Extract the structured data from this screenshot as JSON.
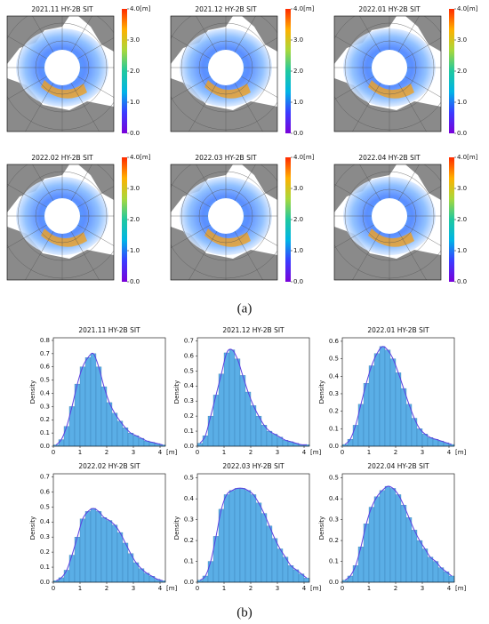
{
  "panel_labels": [
    "(a)",
    "(b)"
  ],
  "chart_data": [
    {
      "type": "map",
      "title": "2021.11 HY-2B SIT",
      "clim": [
        0,
        4
      ],
      "colormap": [
        "#7a00d9",
        "#3b3bff",
        "#00b4e6",
        "#20c8a0",
        "#a8d83c",
        "#ffb000",
        "#ff2a00"
      ],
      "cticks": [
        {
          "value": 0,
          "label": "0.0"
        },
        {
          "value": 1,
          "label": "1.0"
        },
        {
          "value": 2,
          "label": "2.0"
        },
        {
          "value": 3,
          "label": "3.0"
        },
        {
          "value": 4,
          "label": "4.0[m]"
        }
      ]
    },
    {
      "type": "map",
      "title": "2021.12 HY-2B SIT",
      "clim": [
        0,
        4
      ],
      "colormap": [
        "#7a00d9",
        "#3b3bff",
        "#00b4e6",
        "#20c8a0",
        "#a8d83c",
        "#ffb000",
        "#ff2a00"
      ],
      "cticks": [
        {
          "value": 0,
          "label": "0.0"
        },
        {
          "value": 1,
          "label": "1.0"
        },
        {
          "value": 2,
          "label": "2.0"
        },
        {
          "value": 3,
          "label": "3.0"
        },
        {
          "value": 4,
          "label": "4.0[m]"
        }
      ]
    },
    {
      "type": "map",
      "title": "2022.01  HY-2B SIT",
      "clim": [
        0,
        4
      ],
      "colormap": [
        "#7a00d9",
        "#3b3bff",
        "#00b4e6",
        "#20c8a0",
        "#a8d83c",
        "#ffb000",
        "#ff2a00"
      ],
      "cticks": [
        {
          "value": 0,
          "label": "0.0"
        },
        {
          "value": 1,
          "label": "1.0"
        },
        {
          "value": 2,
          "label": "2.0"
        },
        {
          "value": 3,
          "label": "3.0"
        },
        {
          "value": 4,
          "label": "4.0[m]"
        }
      ]
    },
    {
      "type": "map",
      "title": "2022.02 HY-2B SIT",
      "clim": [
        0,
        4
      ],
      "colormap": [
        "#7a00d9",
        "#3b3bff",
        "#00b4e6",
        "#20c8a0",
        "#a8d83c",
        "#ffb000",
        "#ff2a00"
      ],
      "cticks": [
        {
          "value": 0,
          "label": "0.0"
        },
        {
          "value": 1,
          "label": "1.0"
        },
        {
          "value": 2,
          "label": "2.0"
        },
        {
          "value": 3,
          "label": "3.0"
        },
        {
          "value": 4,
          "label": "4.0[m]"
        }
      ]
    },
    {
      "type": "map",
      "title": "2022.03 HY-2B SIT",
      "clim": [
        0,
        4
      ],
      "colormap": [
        "#7a00d9",
        "#3b3bff",
        "#00b4e6",
        "#20c8a0",
        "#a8d83c",
        "#ffb000",
        "#ff2a00"
      ],
      "cticks": [
        {
          "value": 0,
          "label": "0.0"
        },
        {
          "value": 1,
          "label": "1.0"
        },
        {
          "value": 2,
          "label": "2.0"
        },
        {
          "value": 3,
          "label": "3.0"
        },
        {
          "value": 4,
          "label": "4.0[m]"
        }
      ]
    },
    {
      "type": "map",
      "title": "2022.04 HY-2B SIT",
      "clim": [
        0,
        4
      ],
      "colormap": [
        "#7a00d9",
        "#3b3bff",
        "#00b4e6",
        "#20c8a0",
        "#a8d83c",
        "#ffb000",
        "#ff2a00"
      ],
      "cticks": [
        {
          "value": 0,
          "label": "0.0"
        },
        {
          "value": 1,
          "label": "1.0"
        },
        {
          "value": 2,
          "label": "2.0"
        },
        {
          "value": 3,
          "label": "3.0"
        },
        {
          "value": 4,
          "label": "4.0[m]"
        }
      ]
    },
    {
      "type": "histogram",
      "title": "2021.11 HY-2B SIT",
      "ylabel": "Density",
      "xlabel": "[m]",
      "color": "#5aaee6",
      "curve_color": "#5b3fe0",
      "bins": [
        0,
        0.2,
        0.4,
        0.6,
        0.8,
        1.0,
        1.2,
        1.4,
        1.6,
        1.8,
        2.0,
        2.2,
        2.4,
        2.6,
        2.8,
        3.0,
        3.2,
        3.4,
        3.6,
        3.8,
        4.0,
        4.2
      ],
      "values": [
        0.01,
        0.05,
        0.15,
        0.3,
        0.47,
        0.6,
        0.67,
        0.7,
        0.6,
        0.45,
        0.33,
        0.25,
        0.19,
        0.14,
        0.1,
        0.08,
        0.06,
        0.04,
        0.03,
        0.02,
        0.01
      ],
      "xlim": [
        0,
        4.2
      ],
      "xticks": [
        0,
        1,
        2,
        3,
        4
      ],
      "ylim": [
        0,
        0.82
      ],
      "yticks": [
        {
          "value": 0,
          "label": "0.0"
        },
        0.1,
        0.2,
        0.3,
        0.4,
        0.5,
        0.6,
        0.7,
        0.8
      ]
    },
    {
      "type": "histogram",
      "title": "2021.12 HY-2B SIT",
      "ylabel": "Density",
      "xlabel": "[m]",
      "color": "#5aaee6",
      "curve_color": "#5b3fe0",
      "bins": [
        0,
        0.2,
        0.4,
        0.6,
        0.8,
        1.0,
        1.2,
        1.4,
        1.6,
        1.8,
        2.0,
        2.2,
        2.4,
        2.6,
        2.8,
        3.0,
        3.2,
        3.4,
        3.6,
        3.8,
        4.0,
        4.2
      ],
      "values": [
        0.02,
        0.07,
        0.2,
        0.34,
        0.48,
        0.62,
        0.64,
        0.58,
        0.47,
        0.36,
        0.27,
        0.2,
        0.14,
        0.1,
        0.08,
        0.06,
        0.04,
        0.03,
        0.02,
        0.01,
        0.01
      ],
      "xlim": [
        0,
        4.2
      ],
      "xticks": [
        0,
        1,
        2,
        3,
        4
      ],
      "ylim": [
        0,
        0.72
      ],
      "yticks": [
        {
          "value": 0,
          "label": "0.0"
        },
        0.1,
        0.2,
        0.3,
        0.4,
        0.5,
        0.6,
        0.7
      ]
    },
    {
      "type": "histogram",
      "title": "2022.01  HY-2B SIT",
      "ylabel": "Density",
      "xlabel": "[m]",
      "color": "#5aaee6",
      "curve_color": "#5b3fe0",
      "bins": [
        0,
        0.2,
        0.4,
        0.6,
        0.8,
        1.0,
        1.2,
        1.4,
        1.6,
        1.8,
        2.0,
        2.2,
        2.4,
        2.6,
        2.8,
        3.0,
        3.2,
        3.4,
        3.6,
        3.8,
        4.0,
        4.2
      ],
      "values": [
        0.01,
        0.04,
        0.12,
        0.24,
        0.36,
        0.46,
        0.53,
        0.57,
        0.55,
        0.5,
        0.42,
        0.33,
        0.24,
        0.16,
        0.1,
        0.07,
        0.05,
        0.04,
        0.03,
        0.02,
        0.01
      ],
      "xlim": [
        0,
        4.2
      ],
      "xticks": [
        0,
        1,
        2,
        3,
        4
      ],
      "ylim": [
        0,
        0.62
      ],
      "yticks": [
        {
          "value": 0,
          "label": "0.0"
        },
        0.1,
        0.2,
        0.3,
        0.4,
        0.5,
        0.6
      ]
    },
    {
      "type": "histogram",
      "title": "2022.02 HY-2B SIT",
      "ylabel": "Density",
      "xlabel": "[m]",
      "color": "#5aaee6",
      "curve_color": "#5b3fe0",
      "bins": [
        0,
        0.2,
        0.4,
        0.6,
        0.8,
        1.0,
        1.2,
        1.4,
        1.6,
        1.8,
        2.0,
        2.2,
        2.4,
        2.6,
        2.8,
        3.0,
        3.2,
        3.4,
        3.6,
        3.8,
        4.0,
        4.2
      ],
      "values": [
        0.01,
        0.03,
        0.08,
        0.18,
        0.3,
        0.42,
        0.47,
        0.49,
        0.47,
        0.43,
        0.41,
        0.38,
        0.33,
        0.26,
        0.19,
        0.13,
        0.09,
        0.06,
        0.04,
        0.02,
        0.01
      ],
      "xlim": [
        0,
        4.2
      ],
      "xticks": [
        0,
        1,
        2,
        3,
        4
      ],
      "ylim": [
        0,
        0.72
      ],
      "yticks": [
        {
          "value": 0,
          "label": "0.0"
        },
        0.1,
        0.2,
        0.3,
        0.4,
        0.5,
        0.6,
        0.7
      ]
    },
    {
      "type": "histogram",
      "title": "2022.03 HY-2B SIT",
      "ylabel": "Density",
      "xlabel": "[m]",
      "color": "#5aaee6",
      "curve_color": "#5b3fe0",
      "bins": [
        0,
        0.2,
        0.4,
        0.6,
        0.8,
        1.0,
        1.2,
        1.4,
        1.6,
        1.8,
        2.0,
        2.2,
        2.4,
        2.6,
        2.8,
        3.0,
        3.2,
        3.4,
        3.6,
        3.8,
        4.0,
        4.2
      ],
      "values": [
        0.01,
        0.03,
        0.1,
        0.22,
        0.35,
        0.42,
        0.44,
        0.45,
        0.45,
        0.44,
        0.42,
        0.38,
        0.33,
        0.27,
        0.21,
        0.16,
        0.12,
        0.08,
        0.06,
        0.04,
        0.02
      ],
      "xlim": [
        0,
        4.2
      ],
      "xticks": [
        0,
        1,
        2,
        3,
        4
      ],
      "ylim": [
        0,
        0.52
      ],
      "yticks": [
        {
          "value": 0,
          "label": "0.0"
        },
        0.1,
        0.2,
        0.3,
        0.4,
        0.5
      ]
    },
    {
      "type": "histogram",
      "title": "2022.04 HY-2B SIT",
      "ylabel": "Density",
      "xlabel": "[m]",
      "color": "#5aaee6",
      "curve_color": "#5b3fe0",
      "bins": [
        0,
        0.2,
        0.4,
        0.6,
        0.8,
        1.0,
        1.2,
        1.4,
        1.6,
        1.8,
        2.0,
        2.2,
        2.4,
        2.6,
        2.8,
        3.0,
        3.2,
        3.4,
        3.6,
        3.8,
        4.0,
        4.2
      ],
      "values": [
        0.01,
        0.03,
        0.08,
        0.17,
        0.28,
        0.36,
        0.41,
        0.44,
        0.46,
        0.45,
        0.42,
        0.37,
        0.31,
        0.25,
        0.2,
        0.16,
        0.12,
        0.1,
        0.07,
        0.05,
        0.03
      ],
      "xlim": [
        0,
        4.2
      ],
      "xticks": [
        0,
        1,
        2,
        3,
        4
      ],
      "ylim": [
        0,
        0.52
      ],
      "yticks": [
        {
          "value": 0,
          "label": "0.0"
        },
        0.1,
        0.2,
        0.3,
        0.4,
        0.5
      ]
    }
  ]
}
